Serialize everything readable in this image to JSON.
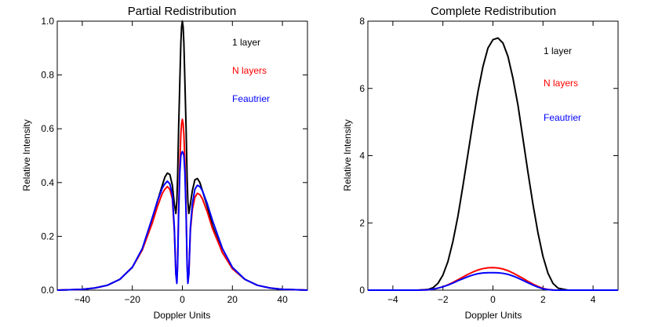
{
  "chart_data": [
    {
      "type": "line",
      "title": "Partial Redistribution",
      "xlabel": "Doppler Units",
      "ylabel": "Relative Intensity",
      "xlim": [
        -50,
        50
      ],
      "ylim": [
        0,
        1.0
      ],
      "xticks": [
        -40,
        -20,
        0,
        20,
        40
      ],
      "xtick_labels": [
        "−40",
        "−20",
        "0",
        "20",
        "40"
      ],
      "yticks": [
        0,
        0.2,
        0.4,
        0.6,
        0.8,
        1.0
      ],
      "ytick_labels": [
        "0.0",
        "0.2",
        "0.4",
        "0.6",
        "0.8",
        "1.0"
      ],
      "legend": [
        "1 layer",
        "N layers",
        "Feautrier"
      ],
      "series": [
        {
          "name": "1 layer",
          "color": "#000000",
          "x": [
            -50,
            -40,
            -35,
            -30,
            -25,
            -20,
            -16,
            -12,
            -10,
            -8,
            -7,
            -6,
            -5,
            -4,
            -3.2,
            -2.6,
            -2.2,
            -1.9,
            -1.5,
            -1.0,
            -0.6,
            -0.3,
            0,
            0.3,
            0.6,
            1.0,
            1.5,
            1.9,
            2.2,
            2.6,
            3.2,
            4,
            5,
            6,
            7,
            8,
            10,
            12,
            16,
            20,
            25,
            30,
            35,
            40,
            50
          ],
          "y": [
            0.0,
            0.003,
            0.008,
            0.018,
            0.04,
            0.085,
            0.15,
            0.26,
            0.33,
            0.39,
            0.42,
            0.435,
            0.43,
            0.39,
            0.32,
            0.285,
            0.33,
            0.42,
            0.6,
            0.78,
            0.92,
            0.98,
            1.0,
            0.98,
            0.92,
            0.78,
            0.6,
            0.42,
            0.33,
            0.285,
            0.32,
            0.37,
            0.41,
            0.415,
            0.4,
            0.37,
            0.31,
            0.24,
            0.14,
            0.08,
            0.04,
            0.018,
            0.008,
            0.003,
            0.0
          ]
        },
        {
          "name": "N layers",
          "color": "#ff0000",
          "x": [
            -50,
            -40,
            -35,
            -30,
            -25,
            -20,
            -16,
            -12,
            -10,
            -8,
            -7,
            -6,
            -5,
            -4,
            -3.2,
            -2.6,
            -2.2,
            -1.9,
            -1.5,
            -1.0,
            -0.6,
            -0.3,
            0,
            0.3,
            0.6,
            1.0,
            1.5,
            1.9,
            2.2,
            2.6,
            3.2,
            4,
            5,
            6,
            7,
            8,
            10,
            12,
            16,
            20,
            25,
            30,
            35,
            40,
            50
          ],
          "y": [
            0.0,
            0.003,
            0.008,
            0.018,
            0.04,
            0.085,
            0.15,
            0.25,
            0.31,
            0.36,
            0.375,
            0.385,
            0.375,
            0.34,
            0.22,
            0.06,
            0.03,
            0.1,
            0.3,
            0.48,
            0.58,
            0.62,
            0.635,
            0.62,
            0.58,
            0.48,
            0.3,
            0.1,
            0.03,
            0.06,
            0.22,
            0.3,
            0.345,
            0.36,
            0.355,
            0.34,
            0.29,
            0.23,
            0.14,
            0.08,
            0.04,
            0.018,
            0.008,
            0.003,
            0.0
          ]
        },
        {
          "name": "Feautrier",
          "color": "#0000ff",
          "x": [
            -50,
            -40,
            -35,
            -30,
            -25,
            -20,
            -16,
            -12,
            -10,
            -8,
            -7,
            -6,
            -5,
            -4,
            -3.2,
            -2.6,
            -2.2,
            -1.9,
            -1.5,
            -1.0,
            -0.6,
            -0.3,
            0,
            0.3,
            0.6,
            1.0,
            1.5,
            1.9,
            2.2,
            2.6,
            3.2,
            4,
            5,
            6,
            7,
            8,
            10,
            12,
            16,
            20,
            25,
            30,
            35,
            40,
            50
          ],
          "y": [
            0.0,
            0.003,
            0.008,
            0.018,
            0.04,
            0.085,
            0.155,
            0.27,
            0.33,
            0.38,
            0.395,
            0.405,
            0.395,
            0.355,
            0.23,
            0.06,
            0.025,
            0.09,
            0.28,
            0.44,
            0.5,
            0.51,
            0.515,
            0.51,
            0.5,
            0.44,
            0.28,
            0.09,
            0.025,
            0.06,
            0.23,
            0.32,
            0.375,
            0.39,
            0.385,
            0.37,
            0.32,
            0.26,
            0.155,
            0.085,
            0.04,
            0.018,
            0.008,
            0.003,
            0.0
          ]
        }
      ]
    },
    {
      "type": "line",
      "title": "Complete Redistribution",
      "xlabel": "Doppler Units",
      "ylabel": "Relative Intensity",
      "xlim": [
        -5,
        5
      ],
      "ylim": [
        0,
        8
      ],
      "xticks": [
        -4,
        -2,
        0,
        2,
        4
      ],
      "xtick_labels": [
        "−4",
        "−2",
        "0",
        "2",
        "4"
      ],
      "yticks": [
        0,
        2,
        4,
        6,
        8
      ],
      "ytick_labels": [
        "0",
        "2",
        "4",
        "6",
        "8"
      ],
      "legend": [
        "1 layer",
        "N layers",
        "Feautrier"
      ],
      "series": [
        {
          "name": "1 layer",
          "color": "#000000",
          "x": [
            -5,
            -3,
            -2.6,
            -2.4,
            -2.2,
            -2,
            -1.8,
            -1.6,
            -1.4,
            -1.2,
            -1,
            -0.8,
            -0.6,
            -0.4,
            -0.2,
            0,
            0.2,
            0.4,
            0.6,
            0.8,
            1,
            1.2,
            1.4,
            1.6,
            1.8,
            2,
            2.2,
            2.4,
            2.6,
            3,
            5
          ],
          "y": [
            0,
            0,
            0.02,
            0.07,
            0.2,
            0.45,
            0.85,
            1.45,
            2.2,
            3.1,
            4.05,
            5.0,
            5.9,
            6.65,
            7.2,
            7.45,
            7.5,
            7.35,
            6.95,
            6.3,
            5.5,
            4.5,
            3.5,
            2.55,
            1.7,
            1.0,
            0.5,
            0.2,
            0.06,
            0,
            0
          ]
        },
        {
          "name": "N layers",
          "color": "#ff0000",
          "x": [
            -5,
            -3,
            -2.6,
            -2.4,
            -2.2,
            -2,
            -1.8,
            -1.6,
            -1.4,
            -1.2,
            -1,
            -0.8,
            -0.6,
            -0.4,
            -0.2,
            0,
            0.2,
            0.4,
            0.6,
            0.8,
            1,
            1.2,
            1.4,
            1.6,
            1.8,
            2,
            2.2,
            2.4,
            2.6,
            3,
            5
          ],
          "y": [
            0,
            0,
            0.01,
            0.03,
            0.06,
            0.1,
            0.16,
            0.23,
            0.31,
            0.39,
            0.47,
            0.54,
            0.6,
            0.64,
            0.665,
            0.67,
            0.66,
            0.63,
            0.58,
            0.51,
            0.43,
            0.35,
            0.26,
            0.18,
            0.11,
            0.05,
            0.02,
            0.005,
            0,
            0,
            0
          ]
        },
        {
          "name": "Feautrier",
          "color": "#0000ff",
          "x": [
            -5,
            -3,
            -2.6,
            -2.4,
            -2.2,
            -2,
            -1.8,
            -1.6,
            -1.4,
            -1.2,
            -1,
            -0.8,
            -0.6,
            -0.4,
            -0.2,
            0,
            0.2,
            0.4,
            0.6,
            0.8,
            1,
            1.2,
            1.4,
            1.6,
            1.8,
            2,
            2.2,
            2.4,
            2.6,
            3,
            5
          ],
          "y": [
            0,
            0,
            0.01,
            0.03,
            0.06,
            0.1,
            0.15,
            0.21,
            0.28,
            0.34,
            0.4,
            0.45,
            0.49,
            0.51,
            0.52,
            0.52,
            0.515,
            0.5,
            0.47,
            0.42,
            0.36,
            0.29,
            0.22,
            0.15,
            0.09,
            0.04,
            0.015,
            0.004,
            0,
            0,
            0
          ]
        }
      ]
    }
  ]
}
